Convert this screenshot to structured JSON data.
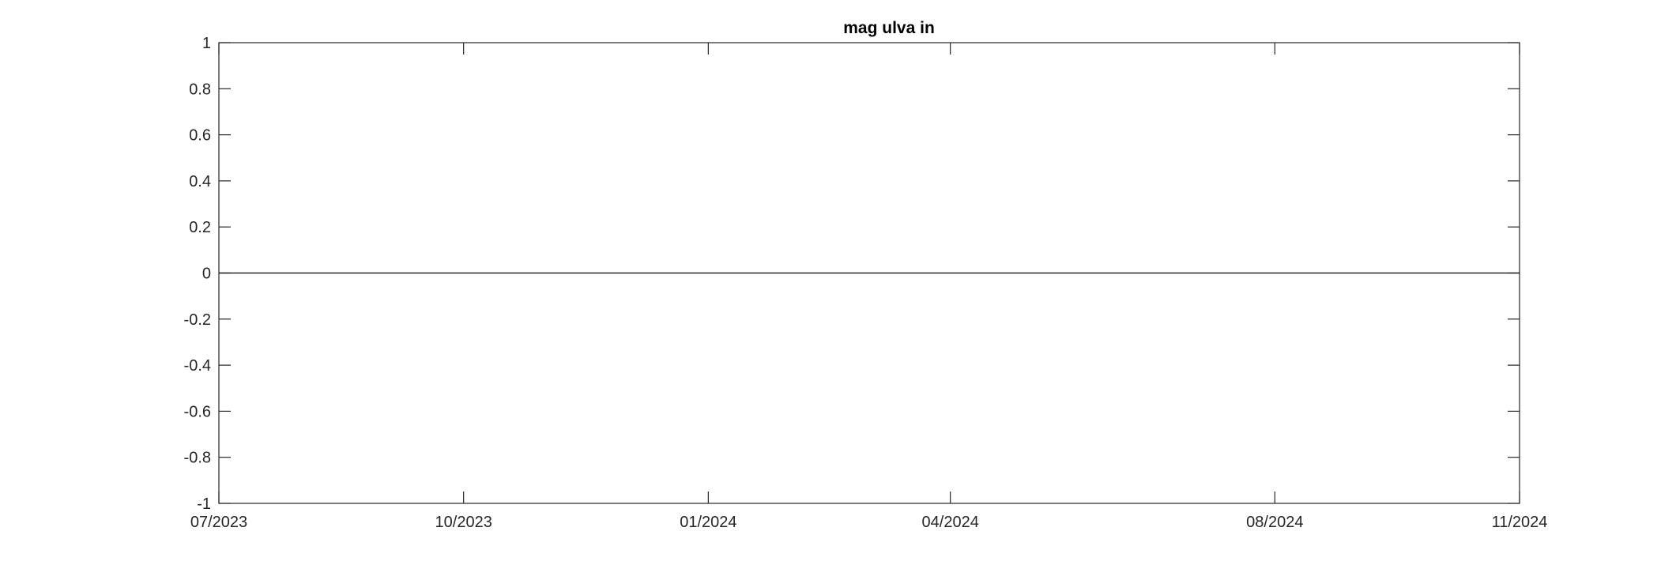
{
  "chart_data": {
    "type": "line",
    "title": "mag ulva in",
    "xlabel": "",
    "ylabel": "",
    "x_axis_type": "date",
    "xlim": [
      "07/2023",
      "11/2024"
    ],
    "xticks": [
      "07/2023",
      "10/2023",
      "01/2024",
      "04/2024",
      "08/2024",
      "11/2024"
    ],
    "ylim": [
      -1,
      1
    ],
    "yticks": [
      "-1",
      "-0.8",
      "-0.6",
      "-0.4",
      "-0.2",
      "0",
      "0.2",
      "0.4",
      "0.6",
      "0.8",
      "1"
    ],
    "grid": false,
    "legend": "none",
    "series": [
      {
        "x": [
          "07/2023",
          "11/2024"
        ],
        "y": [
          0,
          0
        ],
        "color": "#000000"
      }
    ],
    "colors": {
      "axis": "#262626",
      "series": "#000000",
      "background": "#ffffff"
    }
  }
}
